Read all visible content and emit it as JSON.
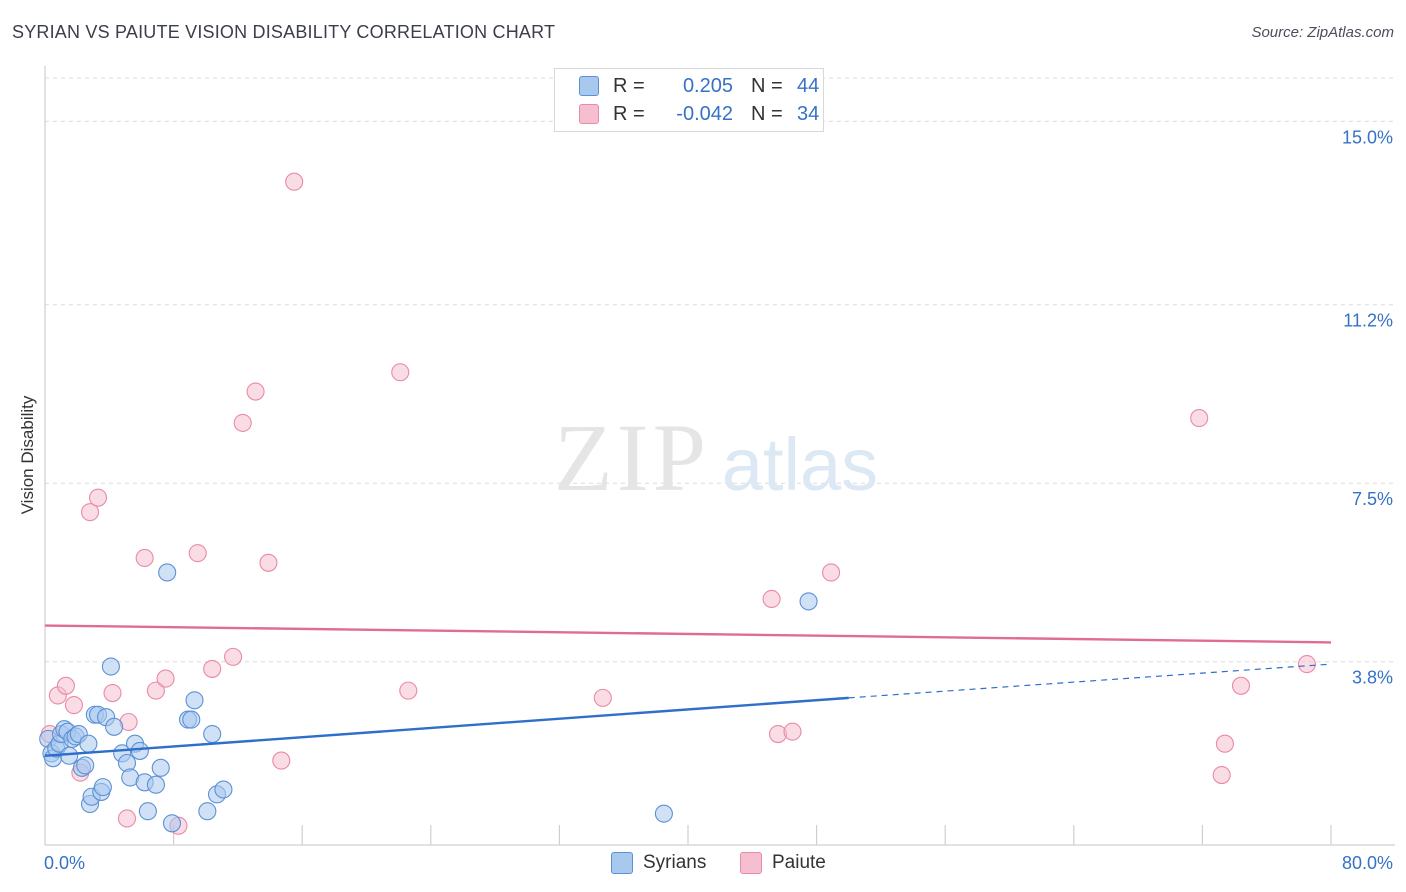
{
  "header": {
    "title": "SYRIAN VS PAIUTE VISION DISABILITY CORRELATION CHART",
    "source": "Source: ZipAtlas.com"
  },
  "watermark": {
    "zip": "ZIP",
    "atlas": "atlas"
  },
  "legend": {
    "rows": [
      {
        "r_label": "R =",
        "r_value": "0.205",
        "n_label": "N =",
        "n_value": "44"
      },
      {
        "r_label": "R =",
        "r_value": "-0.042",
        "n_label": "N =",
        "n_value": "34"
      }
    ]
  },
  "colors": {
    "syrians_fill": "#a9c8ee",
    "syrians_stroke": "#5b91d6",
    "syrians_line": "#2f6fcb",
    "paiute_fill": "#f6bfd0",
    "paiute_stroke": "#e98aa8",
    "paiute_line": "#e06c93",
    "tick_label": "#3572c6",
    "grid": "#dcdcdc"
  },
  "chart_data": {
    "type": "scatter",
    "title": "SYRIAN VS PAIUTE VISION DISABILITY CORRELATION CHART",
    "xlabel": "",
    "ylabel": "Vision Disability",
    "xlim": [
      0,
      80
    ],
    "ylim": [
      0,
      15.9
    ],
    "x_tick_labels": [
      "0.0%",
      "80.0%"
    ],
    "y_ticks": [
      3.8,
      7.5,
      11.2,
      15.0
    ],
    "y_tick_labels": [
      "3.8%",
      "7.5%",
      "11.2%",
      "15.0%"
    ],
    "grid": true,
    "legend_position": "top-center",
    "series": [
      {
        "name": "Syrians",
        "trend": {
          "x": [
            0,
            50,
            80
          ],
          "y": [
            1.85,
            3.05,
            3.75
          ],
          "solid_until": 50
        },
        "points": [
          [
            0.2,
            2.2
          ],
          [
            0.4,
            1.9
          ],
          [
            0.5,
            1.8
          ],
          [
            0.7,
            2.0
          ],
          [
            0.9,
            2.1
          ],
          [
            1.0,
            2.3
          ],
          [
            1.2,
            2.4
          ],
          [
            1.4,
            2.35
          ],
          [
            1.5,
            1.85
          ],
          [
            1.7,
            2.2
          ],
          [
            1.9,
            2.25
          ],
          [
            2.1,
            2.3
          ],
          [
            2.3,
            1.6
          ],
          [
            2.5,
            1.65
          ],
          [
            2.7,
            2.1
          ],
          [
            2.8,
            0.85
          ],
          [
            2.9,
            1.0
          ],
          [
            3.1,
            2.7
          ],
          [
            3.3,
            2.7
          ],
          [
            3.5,
            1.1
          ],
          [
            3.6,
            1.2
          ],
          [
            3.8,
            2.65
          ],
          [
            4.1,
            3.7
          ],
          [
            4.3,
            2.45
          ],
          [
            4.8,
            1.9
          ],
          [
            5.1,
            1.7
          ],
          [
            5.3,
            1.4
          ],
          [
            5.6,
            2.1
          ],
          [
            5.9,
            1.95
          ],
          [
            6.2,
            1.3
          ],
          [
            6.4,
            0.7
          ],
          [
            6.9,
            1.25
          ],
          [
            7.2,
            1.6
          ],
          [
            7.6,
            5.65
          ],
          [
            7.9,
            0.45
          ],
          [
            8.9,
            2.6
          ],
          [
            9.1,
            2.6
          ],
          [
            9.3,
            3.0
          ],
          [
            10.1,
            0.7
          ],
          [
            10.4,
            2.3
          ],
          [
            10.7,
            1.05
          ],
          [
            11.1,
            1.15
          ],
          [
            38.5,
            0.65
          ],
          [
            47.5,
            5.05
          ]
        ]
      },
      {
        "name": "Paiute",
        "trend": {
          "x": [
            0,
            80
          ],
          "y": [
            4.55,
            4.2
          ]
        },
        "points": [
          [
            0.3,
            2.3
          ],
          [
            0.8,
            3.1
          ],
          [
            1.3,
            3.3
          ],
          [
            1.8,
            2.9
          ],
          [
            2.2,
            1.5
          ],
          [
            2.8,
            6.9
          ],
          [
            3.3,
            7.2
          ],
          [
            4.2,
            3.15
          ],
          [
            5.1,
            0.55
          ],
          [
            5.2,
            2.55
          ],
          [
            6.2,
            5.95
          ],
          [
            6.9,
            3.2
          ],
          [
            7.5,
            3.45
          ],
          [
            8.3,
            0.4
          ],
          [
            9.5,
            6.05
          ],
          [
            10.4,
            3.65
          ],
          [
            11.7,
            3.9
          ],
          [
            12.3,
            8.75
          ],
          [
            13.1,
            9.4
          ],
          [
            13.9,
            5.85
          ],
          [
            14.7,
            1.75
          ],
          [
            15.5,
            13.75
          ],
          [
            22.1,
            9.8
          ],
          [
            22.6,
            3.2
          ],
          [
            34.7,
            3.05
          ],
          [
            45.2,
            5.1
          ],
          [
            45.6,
            2.3
          ],
          [
            46.5,
            2.35
          ],
          [
            48.9,
            5.65
          ],
          [
            71.8,
            8.85
          ],
          [
            73.2,
            1.45
          ],
          [
            73.4,
            2.1
          ],
          [
            74.4,
            3.3
          ],
          [
            78.5,
            3.75
          ]
        ]
      }
    ]
  },
  "bottom_legend": [
    "Syrians",
    "Paiute"
  ]
}
